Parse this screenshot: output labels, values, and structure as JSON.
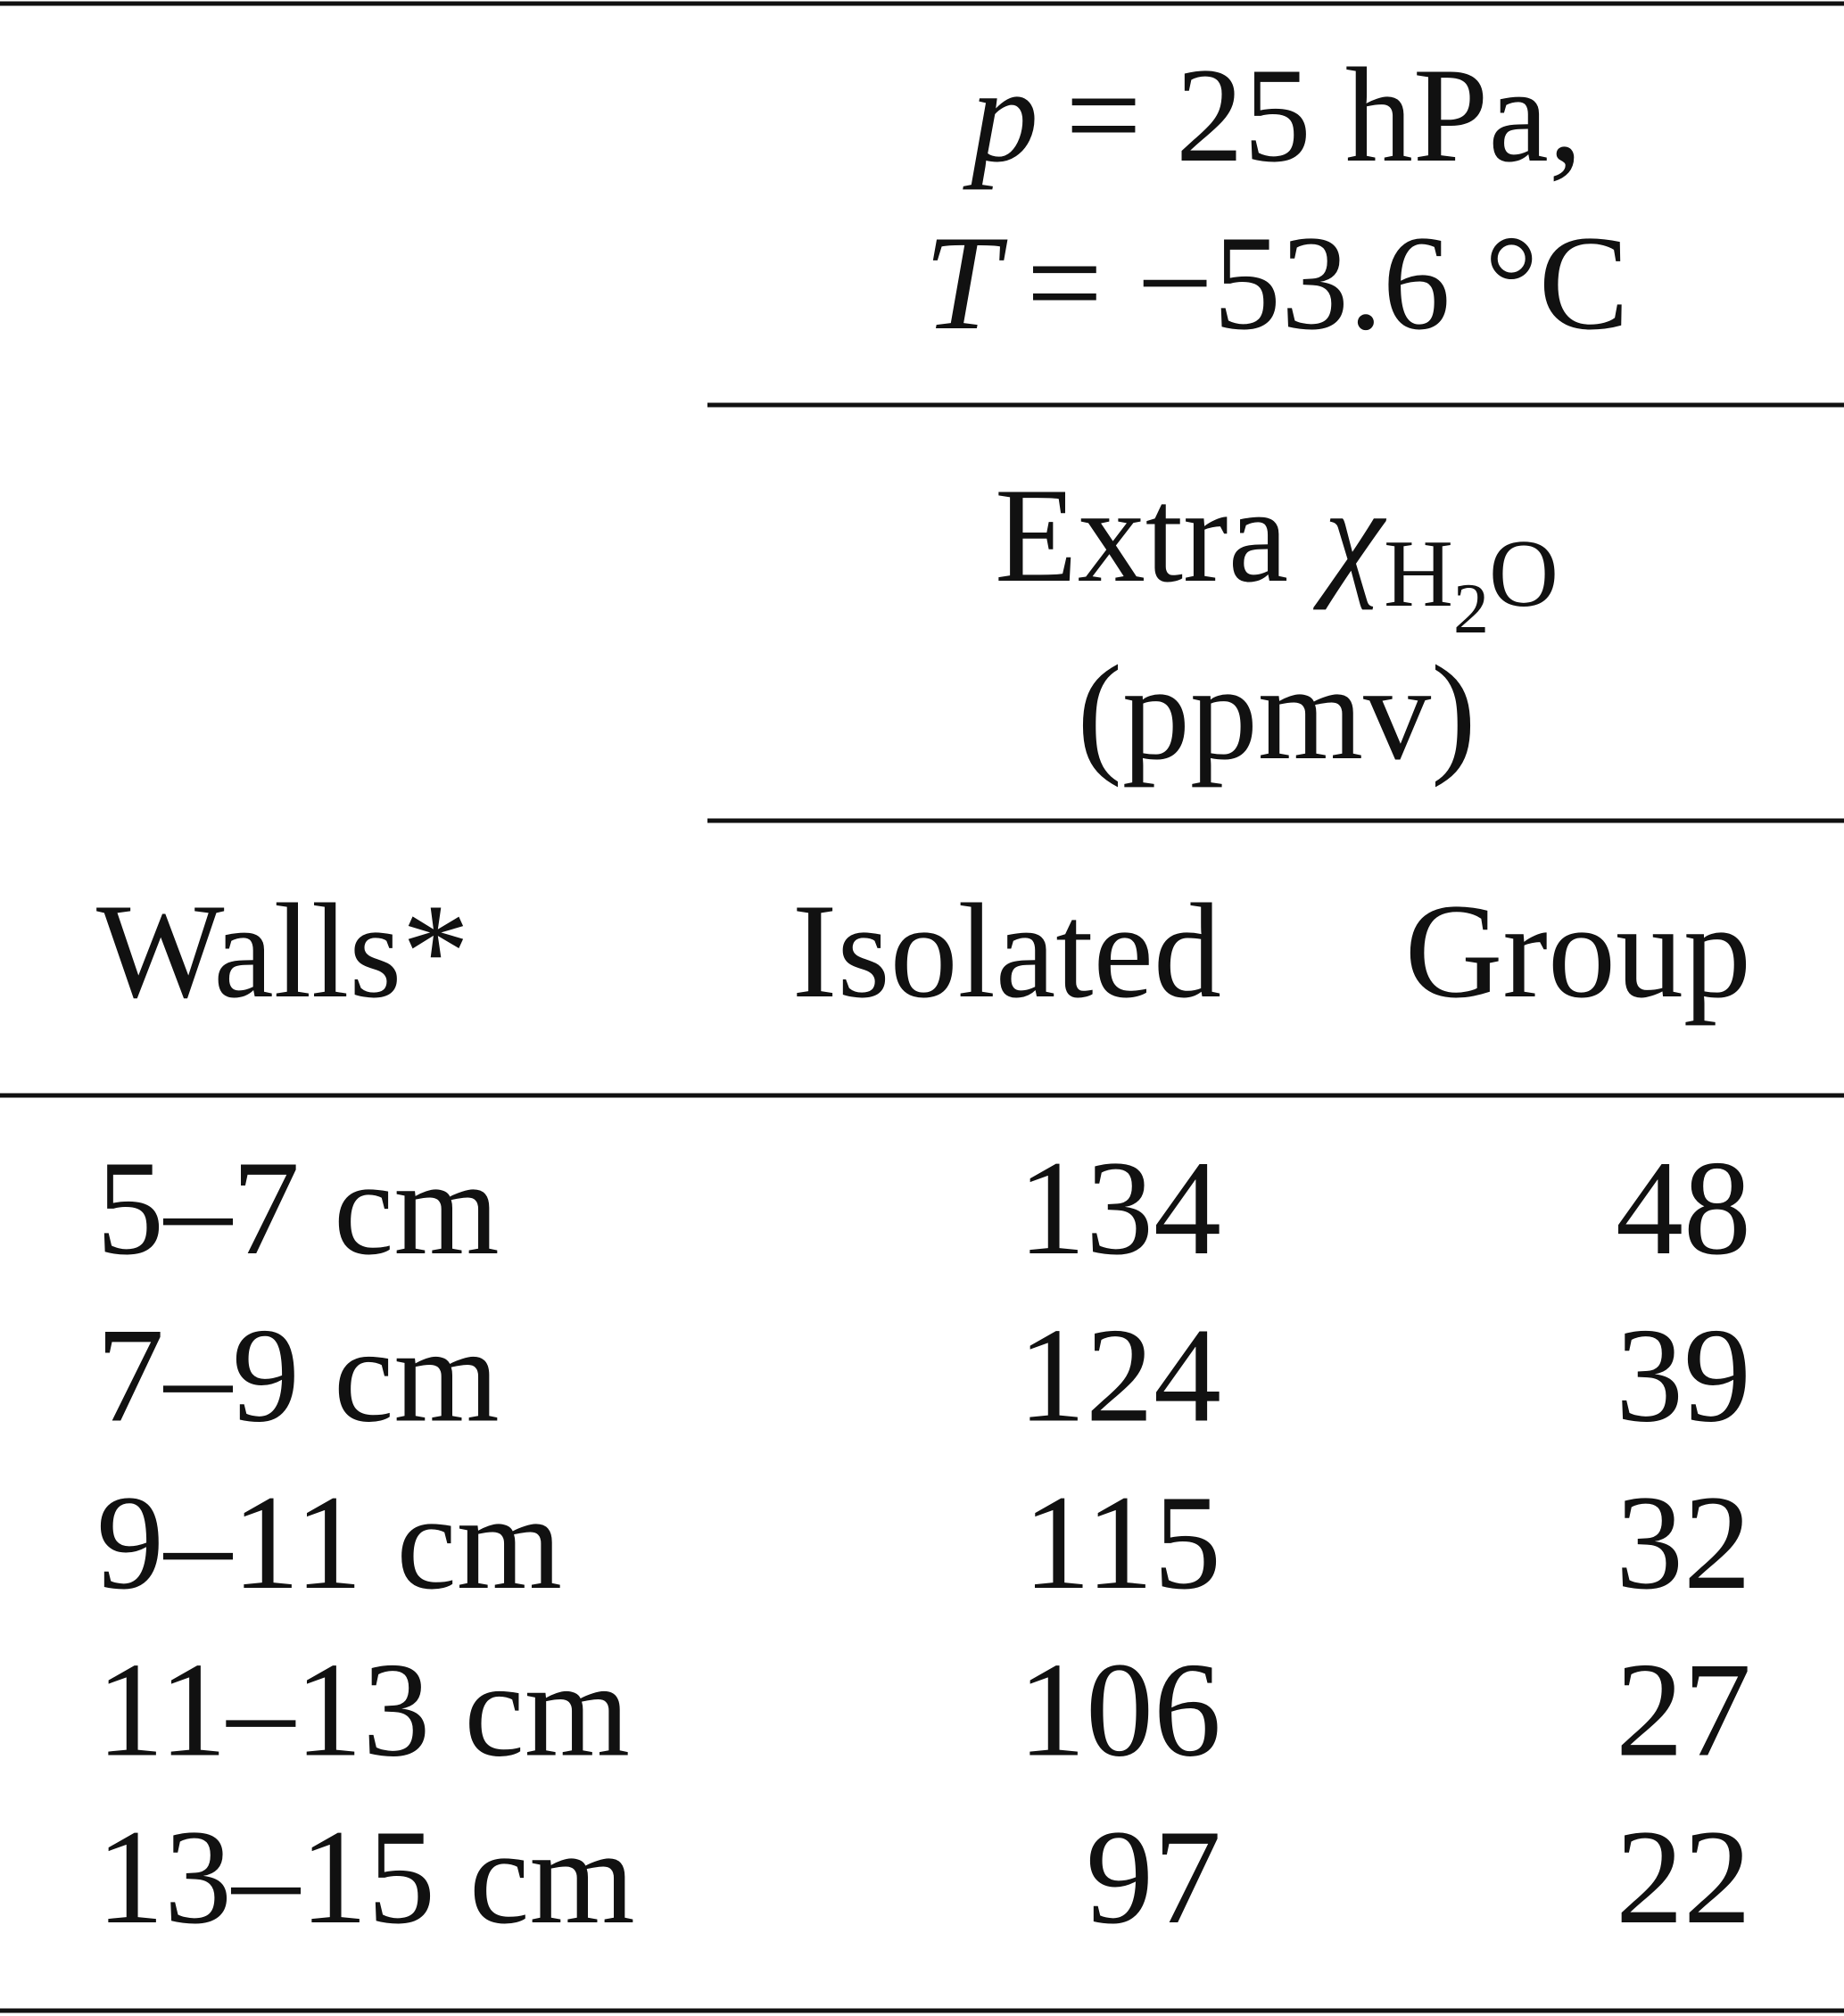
{
  "table": {
    "header": {
      "condition": [
        {
          "symbol": "p",
          "rest": "= 25 hPa,"
        },
        {
          "symbol": "T",
          "rest": "= −53.6 °C"
        }
      ],
      "quantity": {
        "label": "Extra",
        "symbol": "χ",
        "subscript": [
          "H",
          "2",
          "O"
        ]
      },
      "unit": "(ppmv)",
      "columns": [
        "Walls*",
        "Isolated",
        "Group"
      ]
    },
    "rows": [
      [
        "5–7 cm",
        134,
        48
      ],
      [
        "7–9 cm",
        124,
        39
      ],
      [
        "9–11 cm",
        115,
        32
      ],
      [
        "11–13 cm",
        106,
        27
      ],
      [
        "13–15 cm",
        97,
        22
      ]
    ]
  }
}
